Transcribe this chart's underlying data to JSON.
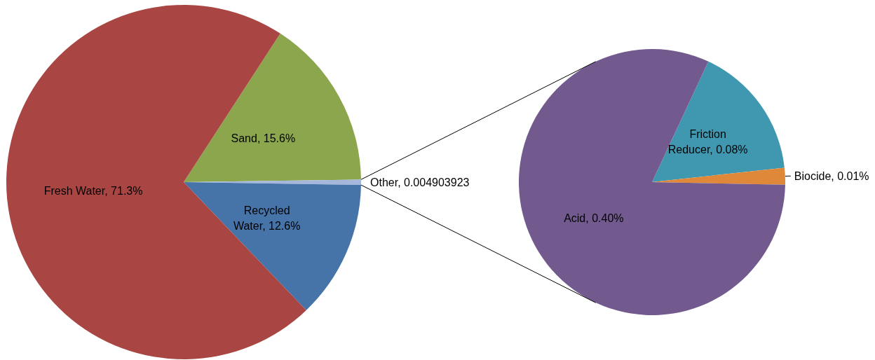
{
  "chart_data": [
    {
      "type": "pie",
      "categories": [
        "Sand",
        "Other",
        "Recycled Water",
        "Fresh Water"
      ],
      "values": [
        0.156,
        0.004903923,
        0.126,
        0.713
      ],
      "colors": [
        "#8ba64d",
        "#a5b8dc",
        "#4673a8",
        "#a94643"
      ],
      "value_labels": [
        "15.6%",
        "0.004903923",
        "12.6%",
        "71.3%"
      ]
    },
    {
      "type": "pie",
      "categories": [
        "Friction Reducer",
        "Biocide",
        "Acid"
      ],
      "values": [
        0.08,
        0.01,
        0.4
      ],
      "colors": [
        "#3f98b0",
        "#e0883a",
        "#725a8f"
      ],
      "value_labels": [
        "0.08%",
        "0.01%",
        "0.40%"
      ]
    }
  ]
}
